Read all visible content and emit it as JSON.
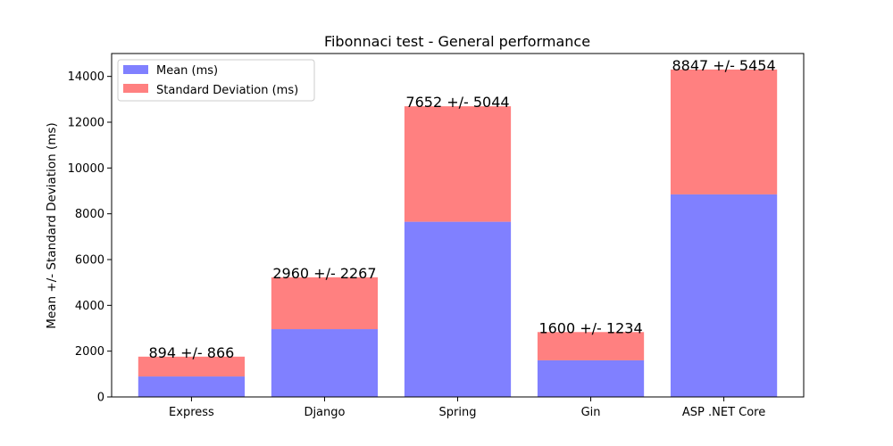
{
  "chart_data": {
    "type": "bar",
    "stacked": true,
    "title": "Fibonnaci test - General performance",
    "xlabel": "",
    "ylabel": "Mean +/- Standard Deviation (ms)",
    "categories": [
      "Express",
      "Django",
      "Spring",
      "Gin",
      "ASP .NET Core"
    ],
    "series": [
      {
        "name": "Mean (ms)",
        "values": [
          894,
          2960,
          7652,
          1600,
          8847
        ],
        "color": "#8080ff"
      },
      {
        "name": "Standard Deviation (ms)",
        "values": [
          866,
          2267,
          5044,
          1234,
          5454
        ],
        "color": "#ff8080"
      }
    ],
    "data_labels": [
      "894 +/- 866",
      "2960 +/- 2267",
      "7652 +/- 5044",
      "1600 +/- 1234",
      "8847 +/- 5454"
    ],
    "ylim": [
      0,
      15000
    ],
    "yticks": [
      0,
      2000,
      4000,
      6000,
      8000,
      10000,
      12000,
      14000
    ],
    "ytick_labels": [
      "0",
      "2000",
      "4000",
      "6000",
      "8000",
      "10000",
      "12000",
      "14000"
    ],
    "legend": "top-left",
    "grid": false
  }
}
